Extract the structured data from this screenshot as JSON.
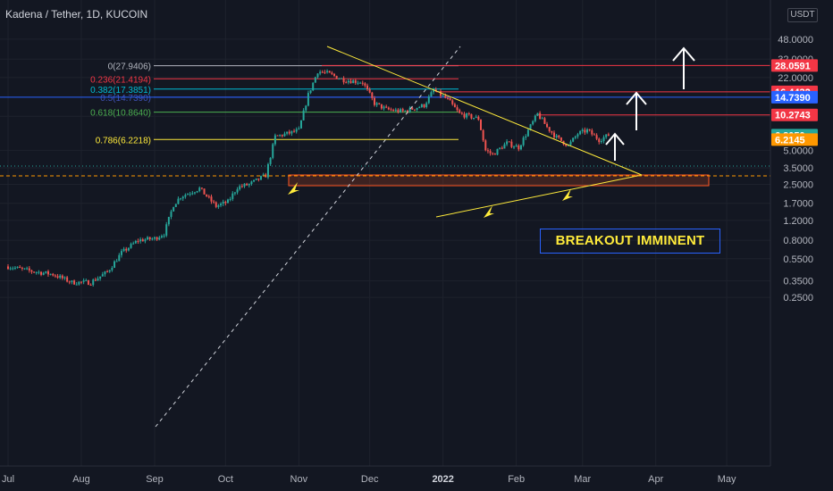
{
  "header": {
    "title": "Kadena / Tether, 1D, KUCOIN",
    "currency": "USDT"
  },
  "annotation": {
    "text": "BREAKOUT IMMINENT"
  },
  "colors": {
    "background": "#131722",
    "up": "#26a69a",
    "down": "#ef5350",
    "fib_0": "#b2b5be",
    "fib_236": "#f23645",
    "fib_382": "#00bcd4",
    "fib_5": "#3f51b5",
    "fib_618": "#4caf50",
    "fib_786": "#ffeb3b",
    "resistance": "#f23645",
    "triangle": "#ffeb3b",
    "support_zone": "#ff5722"
  },
  "chart_data": {
    "type": "candlestick",
    "title": "Kadena / Tether, 1D, KUCOIN",
    "x_ticks": [
      "Jul",
      "Aug",
      "Sep",
      "Oct",
      "Nov",
      "Dec",
      "2022",
      "Feb",
      "Mar",
      "Apr",
      "May"
    ],
    "y_ticks": [
      "48.0000",
      "32.0000",
      "22.0000",
      "10.0000",
      "5.0000",
      "3.5000",
      "2.5000",
      "1.7000",
      "1.2000",
      "0.8000",
      "0.5500",
      "0.3500",
      "0.2500"
    ],
    "y_scale": "log",
    "fib_levels": [
      {
        "label": "0(27.9406)",
        "value": 27.9406
      },
      {
        "label": "0.236(21.4194)",
        "value": 21.4194
      },
      {
        "label": "0.382(17.3851)",
        "value": 17.3851
      },
      {
        "label": "0.5(14.7390)",
        "value": 14.739
      },
      {
        "label": "0.618(10.8640)",
        "value": 10.864
      },
      {
        "label": "0.786(6.2218)",
        "value": 6.2218
      }
    ],
    "price_labels": [
      {
        "text": "28.0591",
        "value": 28.0591,
        "color": "#f23645"
      },
      {
        "text": "16.4432",
        "value": 16.4432,
        "color": "#f23645"
      },
      {
        "text": "14.7390",
        "value": 14.739,
        "color": "#2962ff"
      },
      {
        "text": "10.2743",
        "value": 10.2743,
        "color": "#f23645"
      },
      {
        "text": "6.8050",
        "value": 6.805,
        "color": "#26a69a"
      },
      {
        "text": "6.2145",
        "value": 6.2145,
        "color": "#ff9800"
      }
    ],
    "price_path": [
      [
        "2021-07-01",
        0.47
      ],
      [
        "2021-07-10",
        0.43
      ],
      [
        "2021-07-20",
        0.4
      ],
      [
        "2021-07-28",
        0.34
      ],
      [
        "2021-08-05",
        0.34
      ],
      [
        "2021-08-12",
        0.42
      ],
      [
        "2021-08-18",
        0.62
      ],
      [
        "2021-08-25",
        0.8
      ],
      [
        "2021-09-01",
        0.83
      ],
      [
        "2021-09-05",
        0.92
      ],
      [
        "2021-09-09",
        1.65
      ],
      [
        "2021-09-12",
        1.95
      ],
      [
        "2021-09-20",
        2.3
      ],
      [
        "2021-09-27",
        1.6
      ],
      [
        "2021-10-02",
        1.75
      ],
      [
        "2021-10-06",
        2.35
      ],
      [
        "2021-10-11",
        2.5
      ],
      [
        "2021-10-18",
        3.0
      ],
      [
        "2021-10-22",
        6.6
      ],
      [
        "2021-10-28",
        7.1
      ],
      [
        "2021-11-01",
        7.5
      ],
      [
        "2021-11-05",
        15.5
      ],
      [
        "2021-11-09",
        25.0
      ],
      [
        "2021-11-13",
        24.0
      ],
      [
        "2021-11-20",
        21.0
      ],
      [
        "2021-11-28",
        20.0
      ],
      [
        "2021-12-03",
        13.0
      ],
      [
        "2021-12-08",
        11.5
      ],
      [
        "2021-12-15",
        11.0
      ],
      [
        "2021-12-24",
        12.5
      ],
      [
        "2021-12-28",
        17.0
      ],
      [
        "2022-01-03",
        14.0
      ],
      [
        "2022-01-08",
        10.5
      ],
      [
        "2022-01-16",
        9.5
      ],
      [
        "2022-01-19",
        5.0
      ],
      [
        "2022-01-22",
        4.6
      ],
      [
        "2022-01-28",
        5.8
      ],
      [
        "2022-02-02",
        5.3
      ],
      [
        "2022-02-06",
        7.5
      ],
      [
        "2022-02-10",
        10.5
      ],
      [
        "2022-02-14",
        8.0
      ],
      [
        "2022-02-18",
        6.5
      ],
      [
        "2022-02-23",
        5.5
      ],
      [
        "2022-02-27",
        7.0
      ],
      [
        "2022-03-03",
        7.5
      ],
      [
        "2022-03-08",
        6.2
      ],
      [
        "2022-03-12",
        6.8
      ]
    ]
  }
}
